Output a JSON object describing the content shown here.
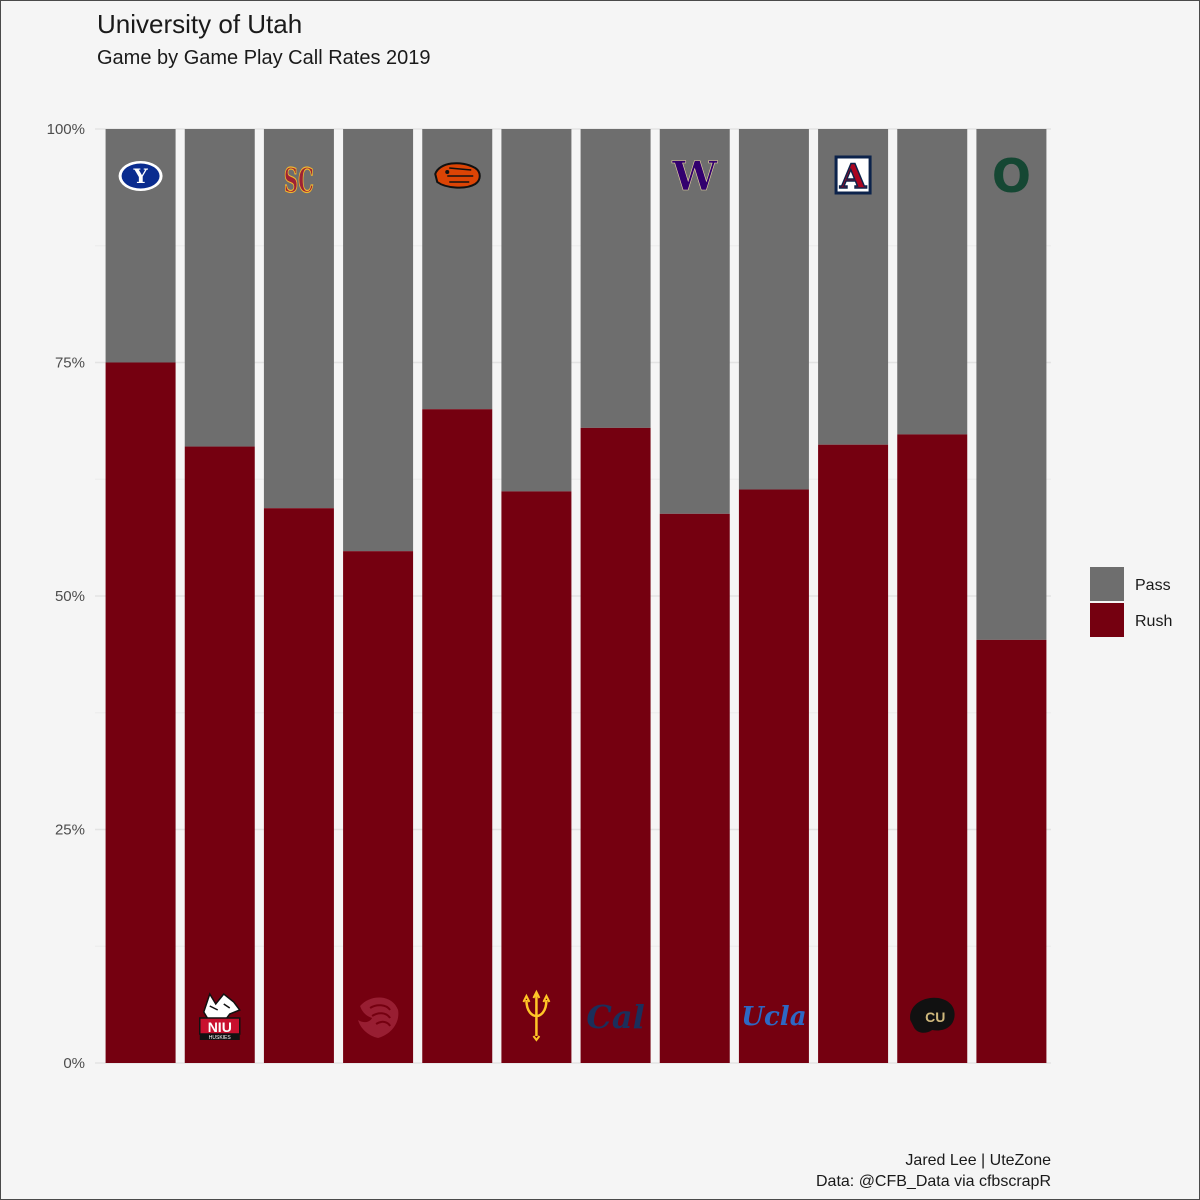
{
  "chart_data": {
    "type": "bar",
    "stacked": true,
    "title": "University of Utah",
    "subtitle": "Game by Game Play Call Rates 2019",
    "xlabel": "",
    "ylabel": "",
    "ylim": [
      0,
      1
    ],
    "yticks": [
      0,
      0.25,
      0.5,
      0.75,
      1
    ],
    "ytick_labels": [
      "0%",
      "25%",
      "50%",
      "75%",
      "100%"
    ],
    "categories": [
      "BYU",
      "Northern Illinois",
      "USC",
      "Washington State",
      "Oregon State",
      "Arizona State",
      "California",
      "Washington",
      "UCLA",
      "Arizona",
      "Colorado",
      "Oregon"
    ],
    "logo_position": [
      "top",
      "bottom",
      "top",
      "bottom",
      "top",
      "bottom",
      "bottom",
      "top",
      "bottom",
      "top",
      "bottom",
      "top"
    ],
    "series": [
      {
        "name": "Rush",
        "color": "#750010",
        "values": [
          0.75,
          0.66,
          0.594,
          0.548,
          0.7,
          0.612,
          0.68,
          0.588,
          0.614,
          0.662,
          0.673,
          0.453
        ]
      },
      {
        "name": "Pass",
        "color": "#6e6e6e",
        "values": [
          0.25,
          0.34,
          0.406,
          0.452,
          0.3,
          0.388,
          0.32,
          0.412,
          0.386,
          0.338,
          0.327,
          0.547
        ]
      }
    ],
    "legend": {
      "position": "right",
      "order": [
        "Pass",
        "Rush"
      ]
    },
    "grid": true,
    "caption_lines": [
      "Jared Lee | UteZone",
      "Data: @CFB_Data via cfbscrapR"
    ]
  },
  "logos": {
    "byu": "Y",
    "niu_name": "NIU",
    "niu_sub": "HUSKIES",
    "usc": "SC",
    "cal": "Cal",
    "washington": "W",
    "ucla": "Ucla",
    "arizona": "A",
    "colorado": "CU",
    "oregon": "O"
  }
}
